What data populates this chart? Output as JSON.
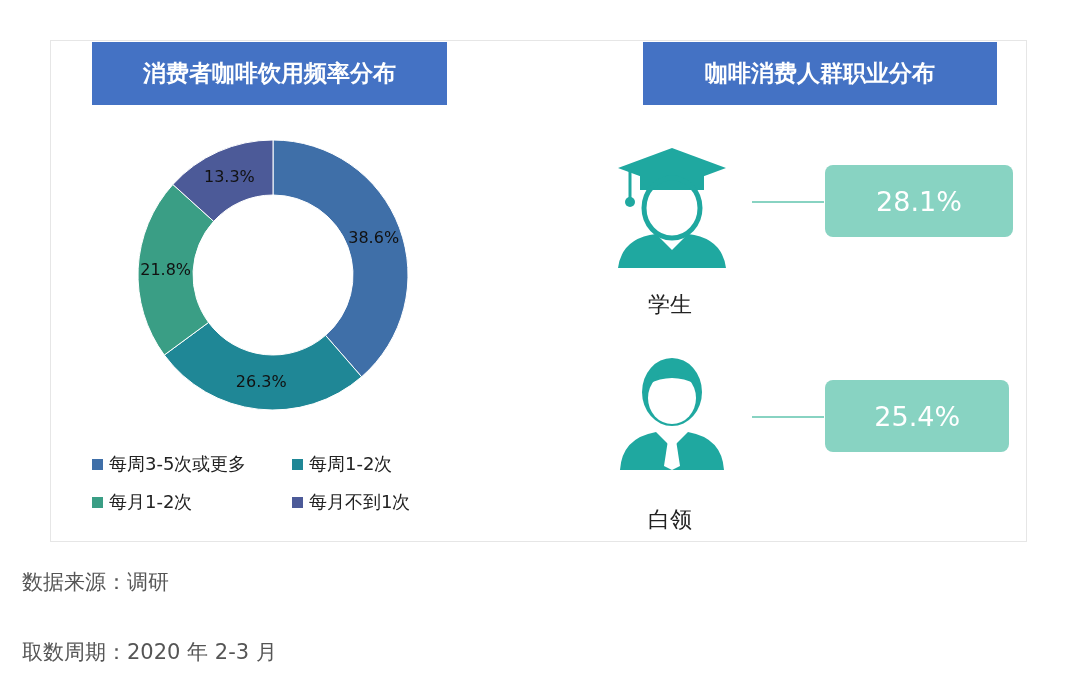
{
  "chart_data": [
    {
      "type": "donut",
      "title": "消费者咖啡饮用频率分布",
      "categories": [
        "每周3-5次或更多",
        "每周1-2次",
        "每月1-2次",
        "每月不到1次"
      ],
      "values": [
        38.6,
        26.3,
        21.8,
        13.3
      ],
      "value_labels": [
        "38.6%",
        "26.3%",
        "21.8%",
        "13.3%"
      ],
      "colors": [
        "#3f6fa8",
        "#1f8796",
        "#3a9e85",
        "#4c5a98"
      ],
      "legend": "bottom",
      "annotations": [
        "数据来源：调研",
        "取数周期：2020 年 2-3 月"
      ]
    },
    {
      "type": "other",
      "title": "咖啡消费人群职业分布",
      "categories": [
        "学生",
        "白领"
      ],
      "values": [
        28.1,
        25.4
      ],
      "value_labels": [
        "28.1%",
        "25.4%"
      ],
      "color": "#88d3c2"
    }
  ]
}
